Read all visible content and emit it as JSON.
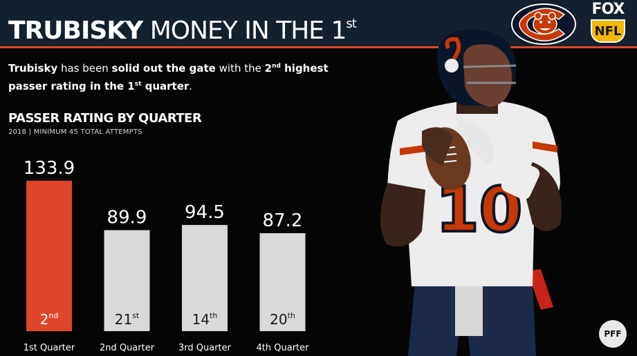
{
  "header": {
    "title_bold": "TRUBISKY",
    "title_rest": "MONEY IN THE 1",
    "title_sup": "st",
    "logos": [
      "bears-logo",
      "fox-nfl-logo"
    ],
    "fox_text": "FOX",
    "nfl_text": "NFL"
  },
  "subtitle": {
    "parts": [
      "Trubisky",
      " has been ",
      "solid out the gate",
      " with the ",
      "2",
      "nd",
      " highest passer rating",
      " in the 1",
      "st",
      " quarter",
      "."
    ]
  },
  "colors": {
    "background": "#050505",
    "header": "#13202e",
    "accent": "#e0462a",
    "bar_highlight": "#e0462a",
    "bar_default": "#d9d9d9",
    "bears_navy": "#0b162a",
    "bears_orange": "#c83803"
  },
  "chart_data": {
    "type": "bar",
    "title": "PASSER RATING BY QUARTER",
    "subtitle": "2018 | MINIMUM 45 TOTAL ATTEMPTS",
    "categories": [
      "1st Quarter",
      "2nd Quarter",
      "3rd Quarter",
      "4th Quarter"
    ],
    "values": [
      133.9,
      89.9,
      94.5,
      87.2
    ],
    "value_labels": [
      "133.9",
      "89.9",
      "94.5",
      "87.2"
    ],
    "ranks": [
      {
        "num": "2",
        "suffix": "nd"
      },
      {
        "num": "21",
        "suffix": "st"
      },
      {
        "num": "14",
        "suffix": "th"
      },
      {
        "num": "20",
        "suffix": "th"
      }
    ],
    "highlight_index": 0,
    "ylim": [
      0,
      140
    ],
    "grid": false,
    "legend": "none"
  },
  "pff_text": "PFF"
}
